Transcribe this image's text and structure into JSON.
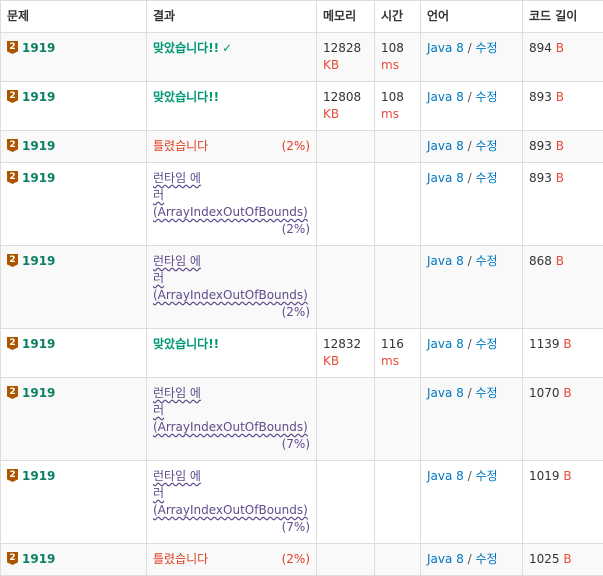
{
  "headers": {
    "problem": "문제",
    "result": "결과",
    "memory": "메모리",
    "time": "시간",
    "language": "언어",
    "code_length": "코드 길이"
  },
  "rows": [
    {
      "problem": "1919",
      "tier": "2",
      "result": "맞았습니다!!",
      "result_kind": "ac",
      "check": "✓",
      "memory": "12828",
      "memory_unit": "KB",
      "time": "108",
      "time_unit": "ms",
      "lang": "Java 8",
      "edit": "수정",
      "length": "894",
      "length_unit": "B"
    },
    {
      "problem": "1919",
      "tier": "2",
      "result": "맞았습니다!!",
      "result_kind": "ac",
      "memory": "12808",
      "memory_unit": "KB",
      "time": "108",
      "time_unit": "ms",
      "lang": "Java 8",
      "edit": "수정",
      "length": "893",
      "length_unit": "B"
    },
    {
      "problem": "1919",
      "tier": "2",
      "result": "틀렸습니다",
      "result_kind": "wa",
      "pct": "(2%)",
      "lang": "Java 8",
      "edit": "수정",
      "length": "893",
      "length_unit": "B"
    },
    {
      "problem": "1919",
      "tier": "2",
      "result_line1": "런타임 에",
      "result_line2": "러 (ArrayIndexOutOfBounds)",
      "result_kind": "rte",
      "pct": "(2%)",
      "lang": "Java 8",
      "edit": "수정",
      "length": "893",
      "length_unit": "B"
    },
    {
      "problem": "1919",
      "tier": "2",
      "result_line1": "런타임 에",
      "result_line2": "러 (ArrayIndexOutOfBounds)",
      "result_kind": "rte",
      "pct": "(2%)",
      "lang": "Java 8",
      "edit": "수정",
      "length": "868",
      "length_unit": "B"
    },
    {
      "problem": "1919",
      "tier": "2",
      "result": "맞았습니다!!",
      "result_kind": "ac",
      "memory": "12832",
      "memory_unit": "KB",
      "time": "116",
      "time_unit": "ms",
      "lang": "Java 8",
      "edit": "수정",
      "length": "1139",
      "length_unit": "B"
    },
    {
      "problem": "1919",
      "tier": "2",
      "result_line1": "런타임 에",
      "result_line2": "러 (ArrayIndexOutOfBounds)",
      "result_kind": "rte",
      "pct": "(7%)",
      "lang": "Java 8",
      "edit": "수정",
      "length": "1070",
      "length_unit": "B"
    },
    {
      "problem": "1919",
      "tier": "2",
      "result_line1": "런타임 에",
      "result_line2": "러 (ArrayIndexOutOfBounds)",
      "result_kind": "rte",
      "pct": "(7%)",
      "lang": "Java 8",
      "edit": "수정",
      "length": "1019",
      "length_unit": "B"
    },
    {
      "problem": "1919",
      "tier": "2",
      "result": "틀렸습니다",
      "result_kind": "wa",
      "pct": "(2%)",
      "lang": "Java 8",
      "edit": "수정",
      "length": "1025",
      "length_unit": "B"
    }
  ],
  "colors": {
    "accepted": "#009874",
    "wrong": "#dd4124",
    "runtime_error": "#5f4b8b",
    "link": "#0076c0",
    "bronze_badge": "#ad5600"
  }
}
